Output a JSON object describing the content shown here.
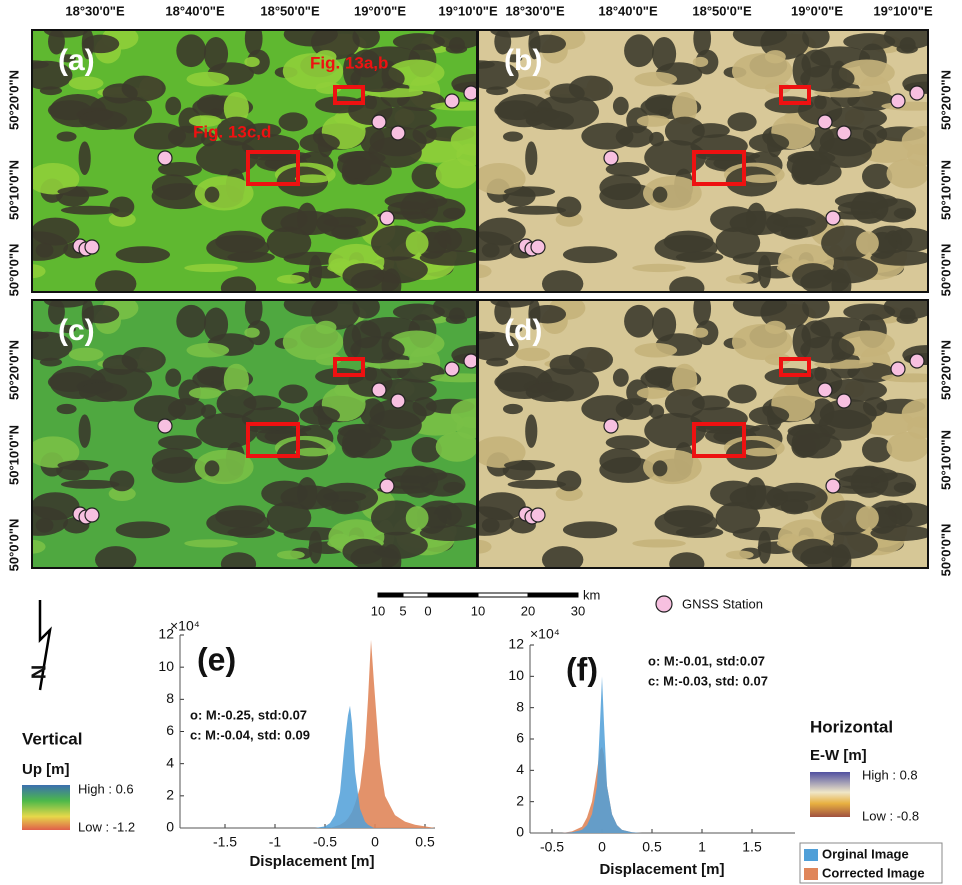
{
  "maps": {
    "panels": [
      {
        "label": "(a)"
      },
      {
        "label": "(b)"
      },
      {
        "label": "(c)"
      },
      {
        "label": "(d)"
      }
    ],
    "lon_labels": [
      "18°30'0\"E",
      "18°40'0\"E",
      "18°50'0\"E",
      "19°0'0\"E",
      "19°10'0\"E"
    ],
    "lat_labels": [
      "50°20'0\"N",
      "50°10'0\"N",
      "50°0'0\"N"
    ],
    "annotations": [
      "Fig. 13a,b",
      "Fig. 13c,d"
    ],
    "scale_bar": {
      "labels": [
        "10",
        "5",
        "0",
        "10",
        "20",
        "30"
      ],
      "unit": "km"
    },
    "station_legend": "GNSS Station",
    "north": "N"
  },
  "legends": [
    {
      "title": "Vertical",
      "unit": "Up [m]",
      "high": "High : 0.6",
      "low": "Low : -1.2"
    },
    {
      "title": "Horizontal",
      "unit": "E-W [m]",
      "high": "High : 0.8",
      "low": "Low : -0.8"
    }
  ],
  "chart_data": [
    {
      "type": "area",
      "panel_label": "(e)",
      "y_multiplier": "×10⁴",
      "xlabel": "Displacement [m]",
      "annotations": [
        "o: M:-0.25, std:0.07",
        "c: M:-0.04, std: 0.09"
      ],
      "x": [
        -0.6,
        -0.5,
        -0.45,
        -0.4,
        -0.35,
        -0.3,
        -0.27,
        -0.25,
        -0.23,
        -0.2,
        -0.15,
        -0.1,
        -0.07,
        -0.04,
        -0.01,
        0.05,
        0.1,
        0.2,
        0.3,
        0.4,
        0.5,
        0.6
      ],
      "series": [
        {
          "color": "#e0865a",
          "values": [
            0,
            0,
            0,
            0.1,
            0.2,
            0.4,
            0.6,
            0.8,
            1,
            1.5,
            2.5,
            5,
            8,
            11.7,
            9,
            4,
            2,
            0.8,
            0.4,
            0.2,
            0.1,
            0
          ]
        },
        {
          "color": "#4f9fd8",
          "values": [
            0,
            0.1,
            0.3,
            0.8,
            2.2,
            5.5,
            7,
            7.6,
            6.5,
            3.5,
            1.2,
            0.4,
            0.2,
            0.1,
            0,
            0,
            0,
            0,
            0,
            0,
            0,
            0
          ]
        }
      ],
      "xlim": [
        -1.95,
        0.6
      ],
      "xticks": [
        -1.5,
        -1,
        -0.5,
        0,
        0.5
      ],
      "ylim": [
        0,
        12
      ],
      "yticks": [
        0,
        2,
        4,
        6,
        8,
        10,
        12
      ]
    },
    {
      "type": "area",
      "panel_label": "(f)",
      "y_multiplier": "×10⁴",
      "xlabel": "Displacement [m]",
      "annotations": [
        "o: M:-0.01, std:0.07",
        "c: M:-0.03, std: 0.07"
      ],
      "x": [
        -0.4,
        -0.3,
        -0.2,
        -0.15,
        -0.1,
        -0.05,
        -0.02,
        0,
        0.02,
        0.05,
        0.1,
        0.15,
        0.2,
        0.3,
        0.4
      ],
      "series": [
        {
          "name": "Corrected Image",
          "color": "#e0865a",
          "values": [
            0,
            0.1,
            0.4,
            1,
            2,
            4,
            5.3,
            5.5,
            5,
            3,
            1.2,
            0.5,
            0.2,
            0.05,
            0
          ]
        },
        {
          "name": "Orginal Image",
          "color": "#4f9fd8",
          "values": [
            0,
            0.05,
            0.2,
            0.5,
            1.2,
            3,
            7,
            10,
            7,
            3,
            1.2,
            0.5,
            0.2,
            0.05,
            0
          ]
        }
      ],
      "xlim": [
        -0.72,
        1.93
      ],
      "xticks": [
        -0.5,
        0,
        0.5,
        1,
        1.5
      ],
      "ylim": [
        0,
        12
      ],
      "yticks": [
        0,
        2,
        4,
        6,
        8,
        10,
        12
      ]
    }
  ]
}
